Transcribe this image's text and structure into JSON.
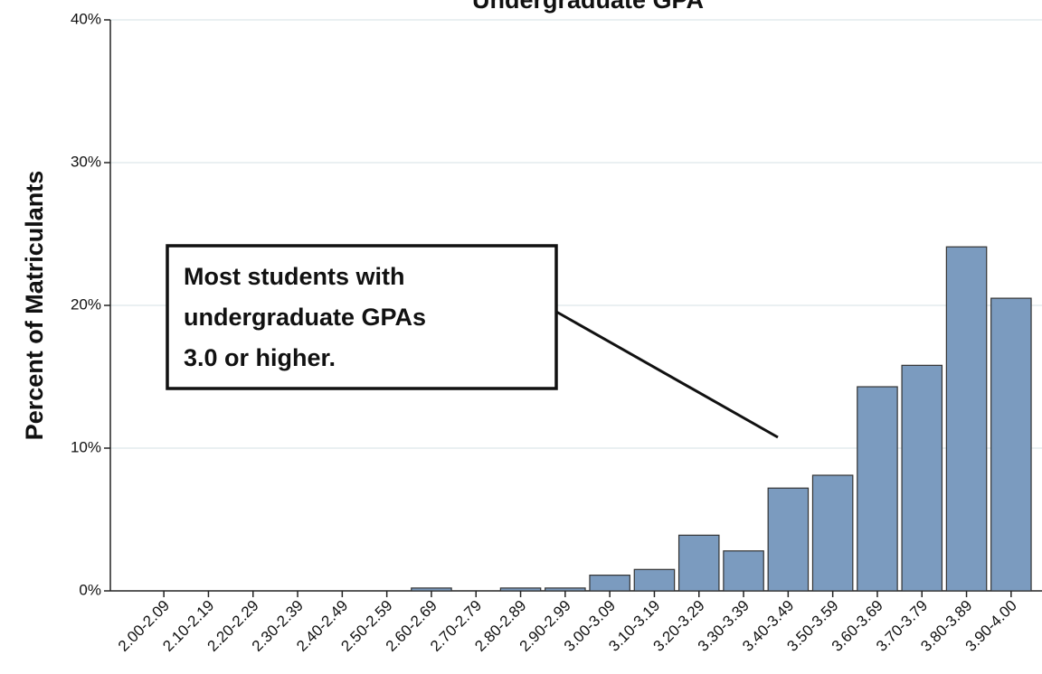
{
  "chart_data": {
    "type": "bar",
    "title": "Undergraduate GPA",
    "ylabel": "Percent of Matriculants",
    "categories": [
      "2.00-2.09",
      "2.10-2.19",
      "2.20-2.29",
      "2.30-2.39",
      "2.40-2.49",
      "2.50-2.59",
      "2.60-2.69",
      "2.70-2.79",
      "2.80-2.89",
      "2.90-2.99",
      "3.00-3.09",
      "3.10-3.19",
      "3.20-3.29",
      "3.30-3.39",
      "3.40-3.49",
      "3.50-3.59",
      "3.60-3.69",
      "3.70-3.79",
      "3.80-3.89",
      "3.90-4.00"
    ],
    "values": [
      0,
      0,
      0,
      0,
      0,
      0,
      0.2,
      0,
      0.2,
      0.2,
      1.1,
      1.5,
      3.9,
      2.8,
      7.2,
      8.1,
      14.3,
      15.8,
      24.1,
      20.5
    ],
    "color": "#7b9bbf",
    "ylim": [
      0,
      40
    ],
    "yticks": [
      {
        "value": 0,
        "label": "0%"
      },
      {
        "value": 10,
        "label": "10%"
      },
      {
        "value": 20,
        "label": "20%"
      },
      {
        "value": 30,
        "label": "30%"
      },
      {
        "value": 40,
        "label": "40%"
      }
    ],
    "grid": true,
    "annotation": [
      "Most students with",
      "undergraduate GPAs",
      "3.0 or higher."
    ]
  }
}
